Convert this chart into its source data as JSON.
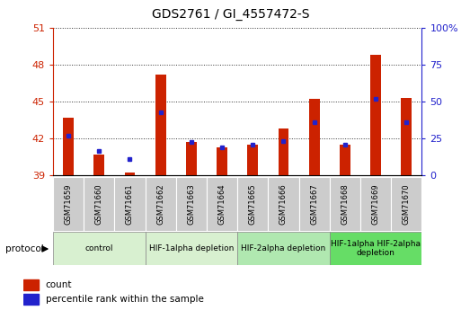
{
  "title": "GDS2761 / GI_4557472-S",
  "samples": [
    "GSM71659",
    "GSM71660",
    "GSM71661",
    "GSM71662",
    "GSM71663",
    "GSM71664",
    "GSM71665",
    "GSM71666",
    "GSM71667",
    "GSM71668",
    "GSM71669",
    "GSM71670"
  ],
  "count_values": [
    43.7,
    40.7,
    39.2,
    47.2,
    41.7,
    41.3,
    41.5,
    42.8,
    45.2,
    41.5,
    48.8,
    45.3
  ],
  "percentile_values": [
    42.2,
    41.0,
    40.3,
    44.1,
    41.7,
    41.3,
    41.5,
    41.8,
    43.3,
    41.5,
    45.2,
    43.3
  ],
  "y_min": 39,
  "y_max": 51,
  "y_ticks": [
    39,
    42,
    45,
    48,
    51
  ],
  "y2_ticks_labels": [
    "0",
    "25",
    "50",
    "75",
    "100%"
  ],
  "y2_tick_positions": [
    39,
    42,
    45,
    48,
    51
  ],
  "protocol_groups": [
    {
      "label": "control",
      "start": 0,
      "end": 2,
      "color": "#d8f0d0"
    },
    {
      "label": "HIF-1alpha depletion",
      "start": 3,
      "end": 5,
      "color": "#d8f0d0"
    },
    {
      "label": "HIF-2alpha depletion",
      "start": 6,
      "end": 8,
      "color": "#b0e8b0"
    },
    {
      "label": "HIF-1alpha HIF-2alpha\ndepletion",
      "start": 9,
      "end": 11,
      "color": "#66dd66"
    }
  ],
  "bar_color": "#cc2200",
  "blue_color": "#2222cc",
  "bar_width": 0.35,
  "grid_color": "#333333",
  "tick_label_color_left": "#cc2200",
  "tick_label_color_right": "#2222cc",
  "legend_count_label": "count",
  "legend_percentile_label": "percentile rank within the sample",
  "protocol_label": "protocol",
  "xlabel_bg": "#cccccc",
  "bg_color": "#ffffff"
}
